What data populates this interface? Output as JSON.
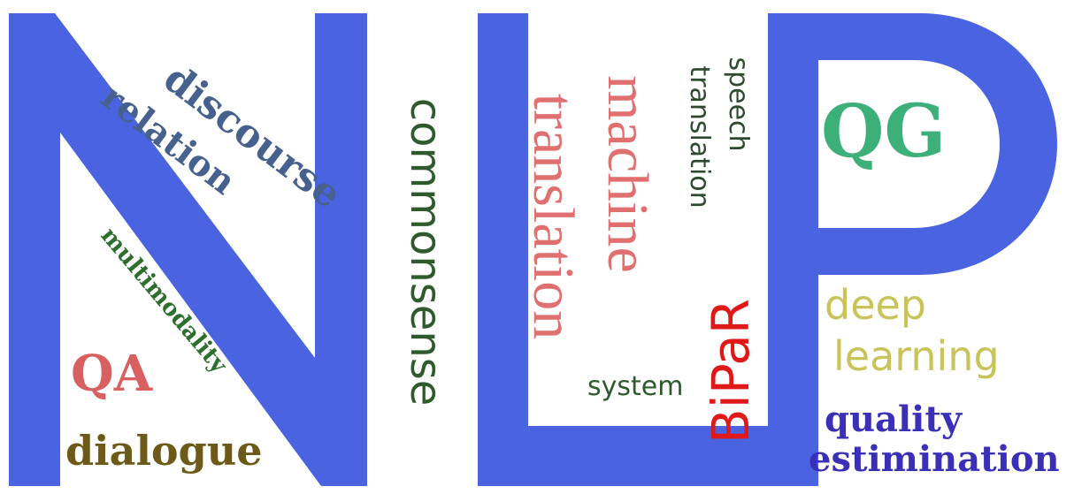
{
  "colors": {
    "letter_blue": "#4a63e0",
    "slate_blue": "#47618e",
    "dark_green": "#2e5a2e",
    "forest_green": "#2e6f2e",
    "salmon": "#e07070",
    "olive_brown": "#6d5a18",
    "teal_green": "#3db07a",
    "yellow_green": "#c8c45a",
    "indigo": "#3a30b8",
    "red": "#e01818",
    "dark_grey_green": "#2e4a2e"
  },
  "graphic": {
    "big_letters": [
      "N",
      "L",
      "P"
    ]
  },
  "words": {
    "discourse": "discourse",
    "relation": "relation",
    "multimodality": "multimodality",
    "qa": "QA",
    "dialogue": "dialogue",
    "commonsense": "commonsense",
    "translation_big": "translation",
    "machine": "machine",
    "speech": "speech",
    "translation_small": "translation",
    "system": "system",
    "bipar": "BiPaR",
    "qg": "QG",
    "deep": "deep",
    "learning": "learning",
    "quality": "quality",
    "estimination": "estimination"
  }
}
